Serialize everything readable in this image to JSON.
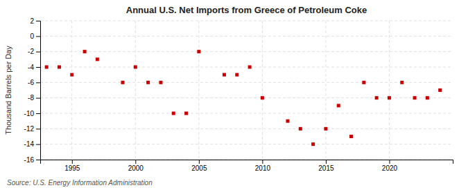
{
  "chart_data": {
    "type": "scatter",
    "title": "Annual U.S. Net Imports from Greece of Petroleum Coke",
    "ylabel": "Thousand Barrels per Day",
    "source": "Source: U.S. Energy Information Administration",
    "color": "#cc0000",
    "marker": "square",
    "grid": true,
    "xlim": [
      1992.5,
      2025
    ],
    "xticks": [
      1995,
      2000,
      2005,
      2010,
      2015,
      2020
    ],
    "ylim": [
      -16,
      2
    ],
    "yticks": [
      2,
      0,
      -2,
      -4,
      -6,
      -8,
      -10,
      -12,
      -14,
      -16
    ],
    "x": [
      1993,
      1994,
      1995,
      1996,
      1997,
      1999,
      2000,
      2001,
      2002,
      2003,
      2004,
      2005,
      2007,
      2008,
      2009,
      2010,
      2012,
      2013,
      2014,
      2015,
      2016,
      2017,
      2018,
      2019,
      2020,
      2021,
      2022,
      2023,
      2024
    ],
    "values": [
      -4,
      -4,
      -5,
      -2,
      -3,
      -6,
      -4,
      -6,
      -6,
      -10,
      -10,
      -2,
      -5,
      -5,
      -4,
      -8,
      -11,
      -12,
      -14,
      -12,
      -9,
      -13,
      -6,
      -8,
      -8,
      -6,
      -8,
      -8,
      -7
    ]
  }
}
